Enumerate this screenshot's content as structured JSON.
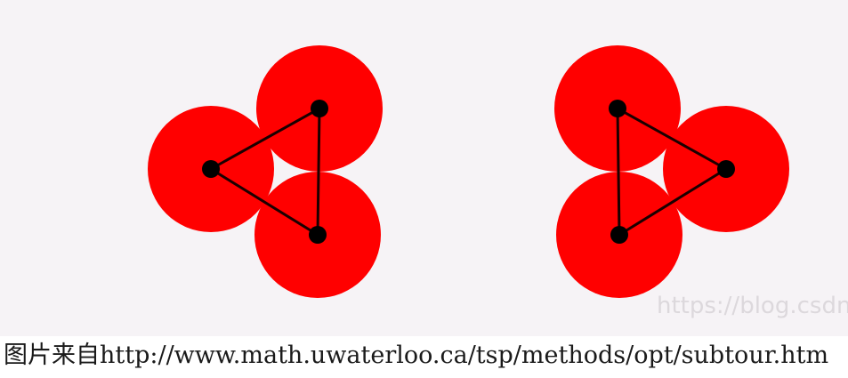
{
  "figure": {
    "disc_color": "#ff0000",
    "edge_color": "#1a0000",
    "node_color": "#000000",
    "background_color": "#f6f3f6",
    "watermark": "https://blog.csdn."
  },
  "caption": {
    "text": "图片来自http://www.math.uwaterloo.ca/tsp/methods/opt/subtour.htm"
  }
}
